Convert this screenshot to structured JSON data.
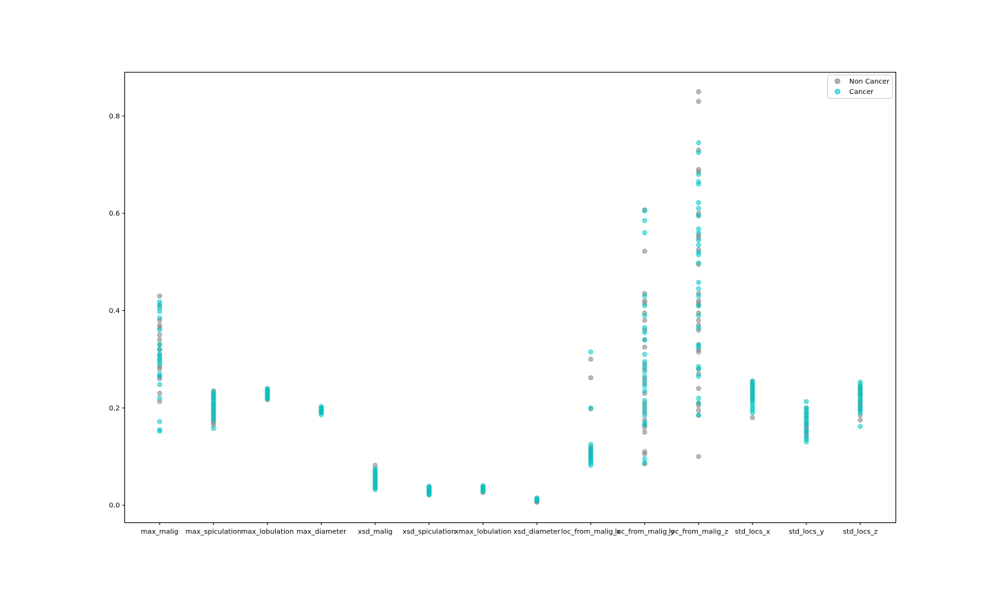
{
  "chart_data": {
    "type": "scatter",
    "title": "",
    "xlabel": "",
    "ylabel": "",
    "categories": [
      "max_malig",
      "max_spiculation",
      "max_lobulation",
      "max_diameter",
      "xsd_malig",
      "xsd_spiculation",
      "xmax_lobulation",
      "xsd_diameter",
      "loc_from_malig_x",
      "loc_from_malig_y",
      "loc_from_malig_z",
      "std_locs_x",
      "std_locs_y",
      "std_locs_z"
    ],
    "ylim": [
      -0.036,
      0.89
    ],
    "yticks": [
      0.0,
      0.2,
      0.4,
      0.6,
      0.8
    ],
    "ytick_labels": [
      "0.0",
      "0.2",
      "0.4",
      "0.6",
      "0.8"
    ],
    "grid": false,
    "legend_position": "top-right",
    "series": [
      {
        "name": "Non Cancer",
        "color": "#808080",
        "values": [
          [
            0.43,
            0.41,
            0.38,
            0.37,
            0.365,
            0.35,
            0.34,
            0.33,
            0.32,
            0.31,
            0.3,
            0.285,
            0.28,
            0.265,
            0.26,
            0.23,
            0.213
          ],
          [
            0.235,
            0.23,
            0.225,
            0.22,
            0.21,
            0.205,
            0.2,
            0.195,
            0.19,
            0.185,
            0.18,
            0.175,
            0.17,
            0.165
          ],
          [
            0.238,
            0.235,
            0.232,
            0.228,
            0.225,
            0.222,
            0.22,
            0.217
          ],
          [
            0.2,
            0.197,
            0.195,
            0.192,
            0.19
          ],
          [
            0.082,
            0.07,
            0.065,
            0.06,
            0.055,
            0.05,
            0.045,
            0.04,
            0.035
          ],
          [
            0.037,
            0.034,
            0.031,
            0.028,
            0.025,
            0.022
          ],
          [
            0.038,
            0.035,
            0.032,
            0.029,
            0.026
          ],
          [
            0.013,
            0.01,
            0.008,
            0.006
          ],
          [
            0.3,
            0.262,
            0.198,
            0.12,
            0.115,
            0.11,
            0.107,
            0.105,
            0.1,
            0.095,
            0.09
          ],
          [
            0.607,
            0.522,
            0.435,
            0.42,
            0.415,
            0.395,
            0.38,
            0.36,
            0.34,
            0.325,
            0.29,
            0.28,
            0.26,
            0.25,
            0.23,
            0.21,
            0.2,
            0.19,
            0.175,
            0.165,
            0.16,
            0.15,
            0.11,
            0.105,
            0.085
          ],
          [
            0.85,
            0.83,
            0.73,
            0.69,
            0.685,
            0.6,
            0.595,
            0.555,
            0.55,
            0.525,
            0.495,
            0.435,
            0.42,
            0.415,
            0.41,
            0.395,
            0.38,
            0.37,
            0.36,
            0.33,
            0.32,
            0.315,
            0.28,
            0.27,
            0.24,
            0.21,
            0.205,
            0.195,
            0.185,
            0.1
          ],
          [
            0.255,
            0.25,
            0.245,
            0.24,
            0.235,
            0.23,
            0.225,
            0.22,
            0.215,
            0.18
          ],
          [
            0.2,
            0.19,
            0.18,
            0.17,
            0.165,
            0.16,
            0.155,
            0.15,
            0.145,
            0.14
          ],
          [
            0.245,
            0.24,
            0.235,
            0.23,
            0.225,
            0.215,
            0.21,
            0.205,
            0.2,
            0.195,
            0.185,
            0.175
          ]
        ]
      },
      {
        "name": "Cancer",
        "color": "#00c5c5",
        "values": [
          [
            0.418,
            0.412,
            0.405,
            0.398,
            0.385,
            0.36,
            0.33,
            0.32,
            0.31,
            0.305,
            0.3,
            0.295,
            0.29,
            0.27,
            0.265,
            0.248,
            0.22,
            0.172,
            0.155,
            0.152
          ],
          [
            0.232,
            0.228,
            0.222,
            0.218,
            0.214,
            0.21,
            0.206,
            0.2,
            0.196,
            0.19,
            0.186,
            0.18,
            0.175,
            0.158
          ],
          [
            0.24,
            0.236,
            0.233,
            0.23,
            0.227,
            0.224,
            0.221,
            0.218
          ],
          [
            0.203,
            0.2,
            0.198,
            0.196,
            0.193,
            0.19,
            0.186
          ],
          [
            0.075,
            0.072,
            0.068,
            0.064,
            0.06,
            0.056,
            0.052,
            0.048,
            0.044,
            0.04,
            0.036,
            0.032
          ],
          [
            0.039,
            0.036,
            0.033,
            0.03,
            0.027,
            0.024,
            0.021
          ],
          [
            0.04,
            0.037,
            0.034,
            0.031,
            0.028
          ],
          [
            0.015,
            0.012,
            0.009
          ],
          [
            0.315,
            0.2,
            0.125,
            0.118,
            0.112,
            0.108,
            0.102,
            0.098,
            0.094,
            0.09,
            0.086,
            0.082
          ],
          [
            0.605,
            0.585,
            0.56,
            0.43,
            0.41,
            0.39,
            0.365,
            0.355,
            0.34,
            0.31,
            0.295,
            0.285,
            0.275,
            0.265,
            0.255,
            0.245,
            0.235,
            0.215,
            0.205,
            0.195,
            0.185,
            0.17,
            0.165,
            0.095,
            0.087
          ],
          [
            0.745,
            0.725,
            0.68,
            0.665,
            0.66,
            0.622,
            0.61,
            0.595,
            0.568,
            0.56,
            0.545,
            0.535,
            0.52,
            0.515,
            0.498,
            0.458,
            0.445,
            0.43,
            0.41,
            0.39,
            0.365,
            0.33,
            0.325,
            0.285,
            0.28,
            0.265,
            0.22,
            0.21,
            0.185
          ],
          [
            0.255,
            0.25,
            0.245,
            0.24,
            0.235,
            0.23,
            0.225,
            0.22,
            0.215,
            0.21,
            0.205,
            0.2,
            0.195,
            0.19
          ],
          [
            0.213,
            0.2,
            0.195,
            0.19,
            0.185,
            0.18,
            0.175,
            0.17,
            0.165,
            0.155,
            0.15,
            0.14,
            0.135,
            0.13
          ],
          [
            0.253,
            0.248,
            0.243,
            0.238,
            0.233,
            0.228,
            0.223,
            0.218,
            0.213,
            0.205,
            0.2,
            0.195,
            0.19,
            0.162
          ]
        ]
      }
    ]
  }
}
